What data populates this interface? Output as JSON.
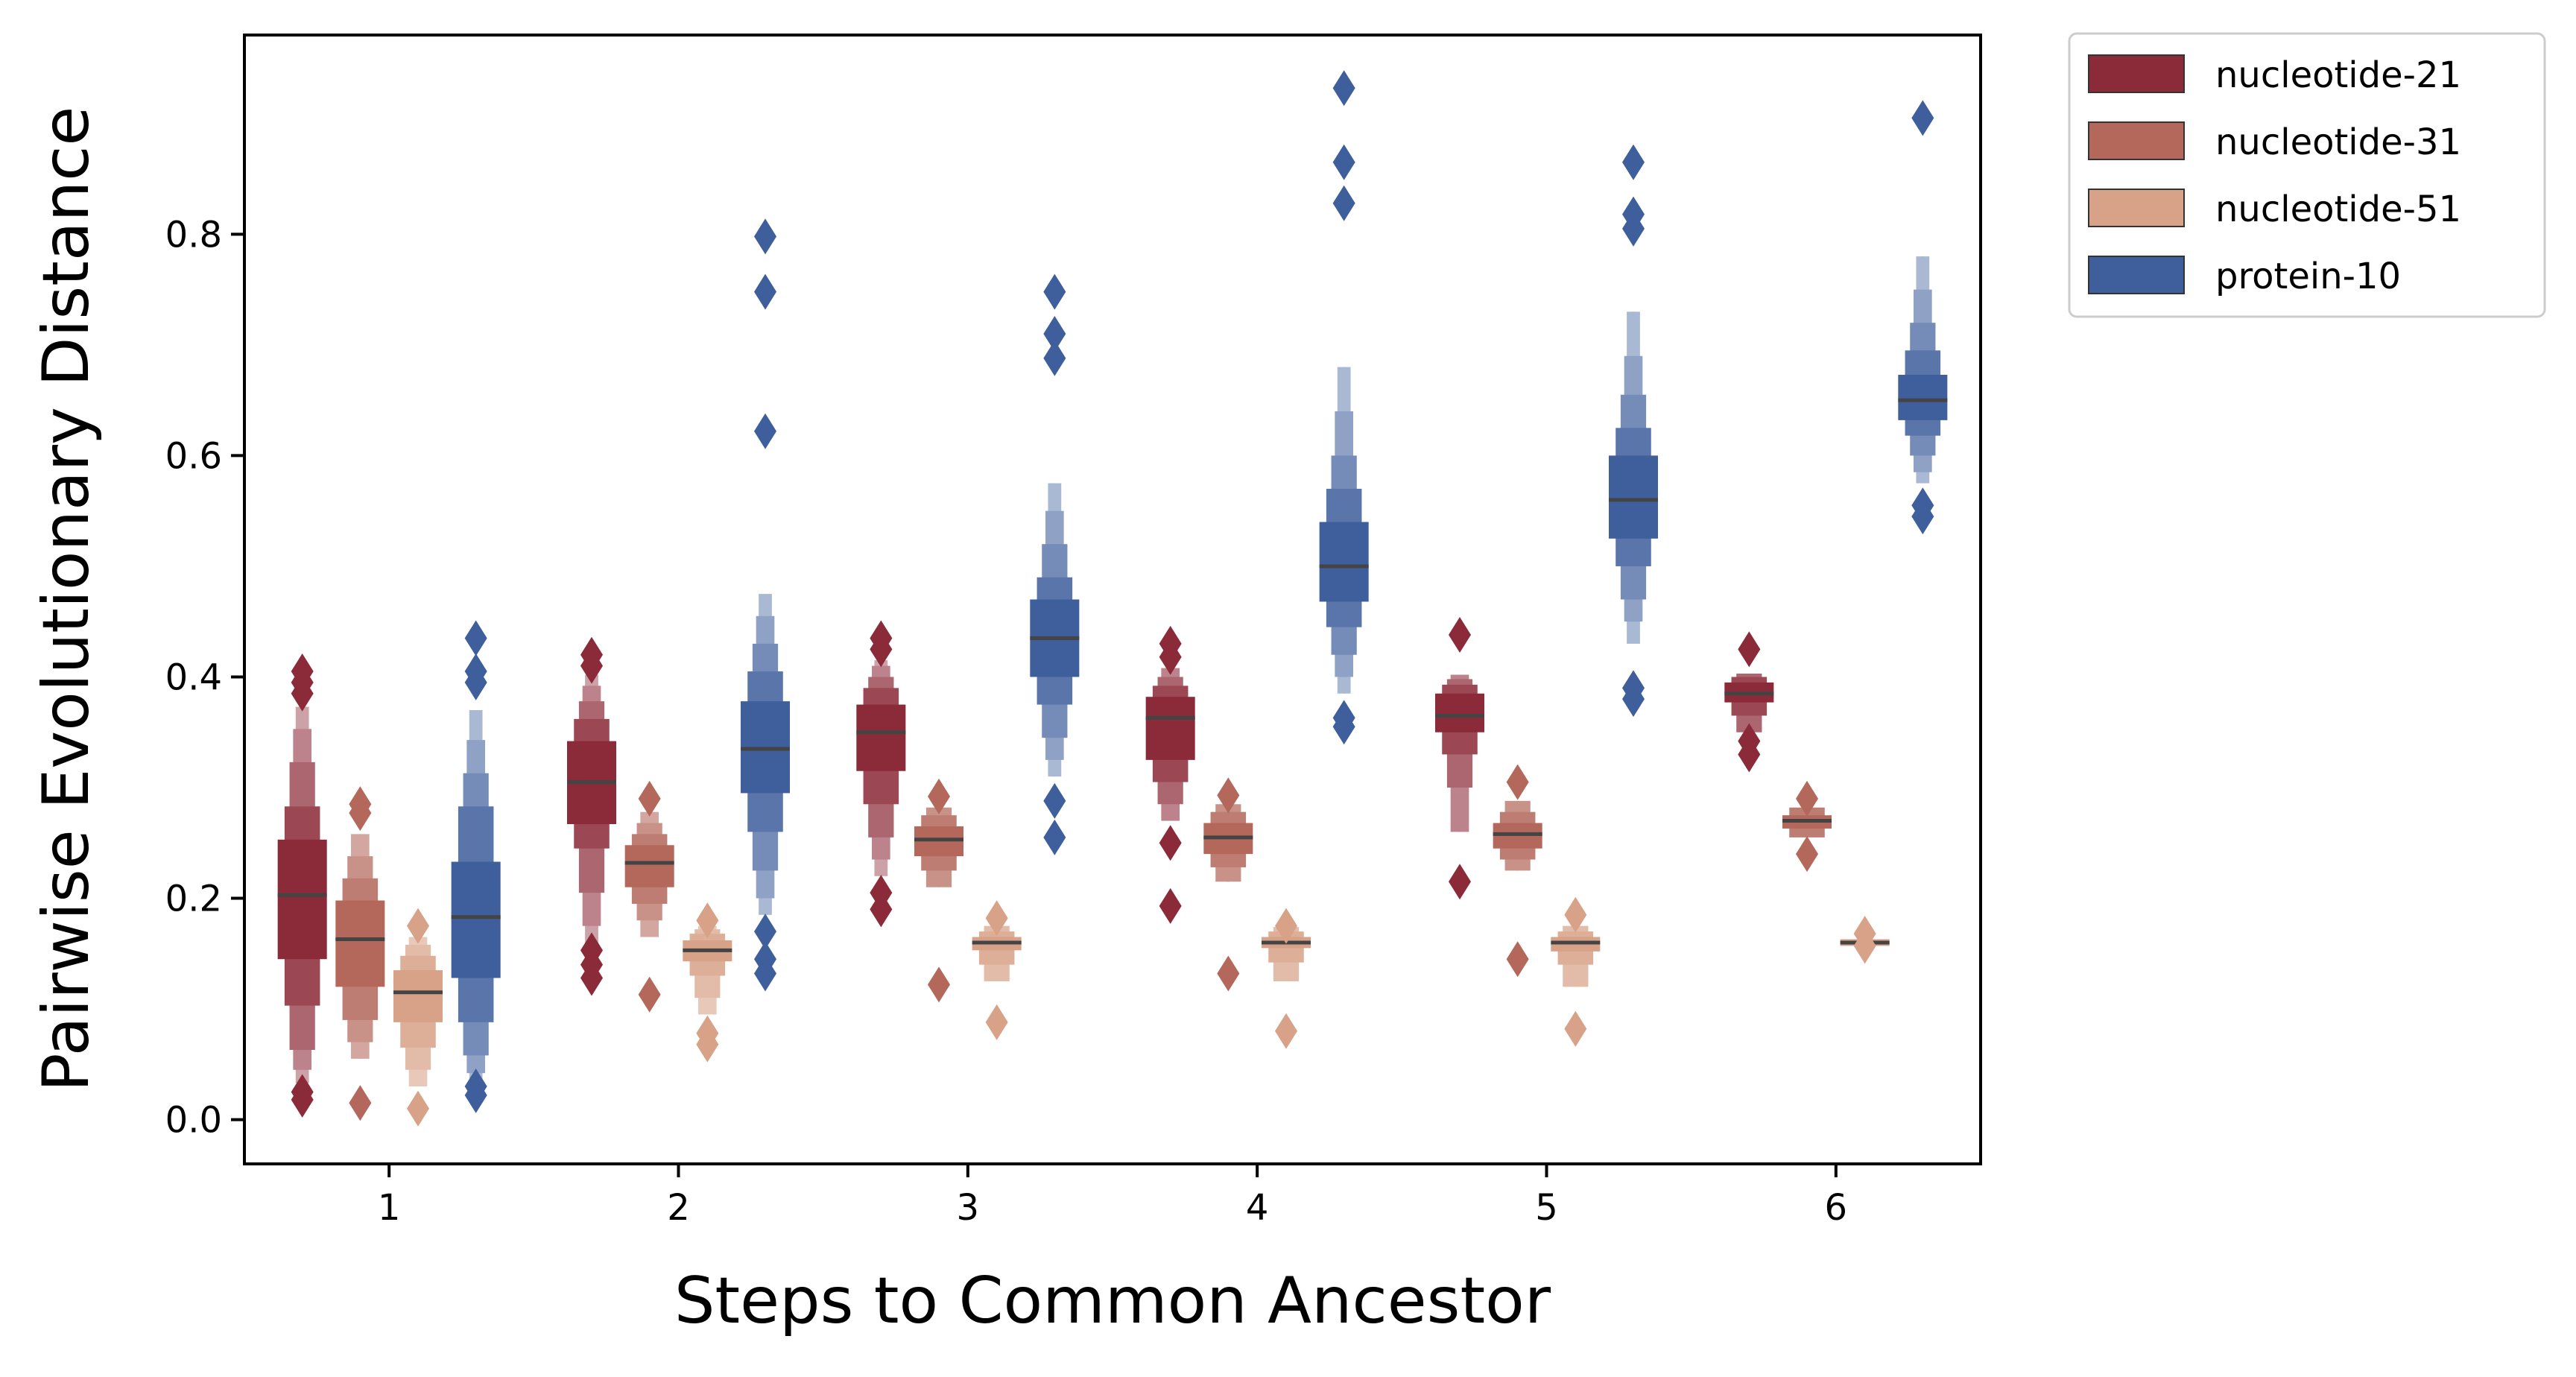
{
  "chart_data": {
    "type": "boxen",
    "xlabel": "Steps to Common Ancestor",
    "ylabel": "Pairwise Evolutionary Distance",
    "categories": [
      "1",
      "2",
      "3",
      "4",
      "5",
      "6"
    ],
    "ylim": [
      -0.04,
      0.98
    ],
    "yticks": [
      0.0,
      0.2,
      0.4,
      0.6,
      0.8
    ],
    "ytick_labels": [
      "0.0",
      "0.2",
      "0.4",
      "0.6",
      "0.8"
    ],
    "grid": false,
    "legend_position": "outside-top-right",
    "series": [
      {
        "name": "nucleotide-21",
        "color": "#8b2a38",
        "groups": [
          {
            "median": 0.203,
            "levels": [
              [
                0.145,
                0.253
              ],
              [
                0.103,
                0.283
              ],
              [
                0.063,
                0.323
              ],
              [
                0.045,
                0.353
              ],
              [
                0.033,
                0.373
              ]
            ],
            "outliers": [
              0.385,
              0.395,
              0.405,
              0.018,
              0.025
            ]
          },
          {
            "median": 0.305,
            "levels": [
              [
                0.267,
                0.342
              ],
              [
                0.245,
                0.362
              ],
              [
                0.205,
                0.378
              ],
              [
                0.175,
                0.392
              ],
              [
                0.155,
                0.402
              ]
            ],
            "outliers": [
              0.41,
              0.42,
              0.153,
              0.14,
              0.128
            ]
          },
          {
            "median": 0.35,
            "levels": [
              [
                0.315,
                0.375
              ],
              [
                0.285,
                0.39
              ],
              [
                0.255,
                0.4
              ],
              [
                0.235,
                0.41
              ],
              [
                0.22,
                0.415
              ]
            ],
            "outliers": [
              0.425,
              0.435,
              0.205,
              0.19
            ]
          },
          {
            "median": 0.363,
            "levels": [
              [
                0.325,
                0.382
              ],
              [
                0.305,
                0.392
              ],
              [
                0.285,
                0.4
              ],
              [
                0.27,
                0.408
              ]
            ],
            "outliers": [
              0.418,
              0.43,
              0.25,
              0.193
            ]
          },
          {
            "median": 0.365,
            "levels": [
              [
                0.35,
                0.385
              ],
              [
                0.33,
                0.393
              ],
              [
                0.3,
                0.398
              ],
              [
                0.26,
                0.402
              ]
            ],
            "outliers": [
              0.438,
              0.215
            ]
          },
          {
            "median": 0.385,
            "levels": [
              [
                0.377,
                0.395
              ],
              [
                0.365,
                0.4
              ],
              [
                0.35,
                0.403
              ]
            ],
            "outliers": [
              0.425,
              0.33,
              0.342
            ]
          }
        ]
      },
      {
        "name": "nucleotide-31",
        "color": "#b3685b",
        "groups": [
          {
            "median": 0.163,
            "levels": [
              [
                0.12,
                0.198
              ],
              [
                0.09,
                0.218
              ],
              [
                0.07,
                0.238
              ],
              [
                0.055,
                0.258
              ]
            ],
            "outliers": [
              0.277,
              0.285,
              0.015
            ]
          },
          {
            "median": 0.232,
            "levels": [
              [
                0.21,
                0.248
              ],
              [
                0.195,
                0.258
              ],
              [
                0.18,
                0.268
              ],
              [
                0.165,
                0.278
              ]
            ],
            "outliers": [
              0.29,
              0.113
            ]
          },
          {
            "median": 0.253,
            "levels": [
              [
                0.238,
                0.265
              ],
              [
                0.225,
                0.275
              ],
              [
                0.21,
                0.282
              ]
            ],
            "outliers": [
              0.292,
              0.122
            ]
          },
          {
            "median": 0.255,
            "levels": [
              [
                0.24,
                0.268
              ],
              [
                0.228,
                0.278
              ],
              [
                0.215,
                0.285
              ]
            ],
            "outliers": [
              0.293,
              0.132
            ]
          },
          {
            "median": 0.258,
            "levels": [
              [
                0.245,
                0.268
              ],
              [
                0.235,
                0.278
              ],
              [
                0.225,
                0.288
              ]
            ],
            "outliers": [
              0.305,
              0.145
            ]
          },
          {
            "median": 0.27,
            "levels": [
              [
                0.263,
                0.275
              ],
              [
                0.255,
                0.282
              ]
            ],
            "outliers": [
              0.29,
              0.24
            ]
          }
        ]
      },
      {
        "name": "nucleotide-51",
        "color": "#d7a287",
        "groups": [
          {
            "median": 0.115,
            "levels": [
              [
                0.088,
                0.135
              ],
              [
                0.065,
                0.148
              ],
              [
                0.045,
                0.158
              ],
              [
                0.03,
                0.165
              ]
            ],
            "outliers": [
              0.175,
              0.01
            ]
          },
          {
            "median": 0.153,
            "levels": [
              [
                0.143,
                0.162
              ],
              [
                0.13,
                0.168
              ],
              [
                0.11,
                0.172
              ],
              [
                0.095,
                0.175
              ]
            ],
            "outliers": [
              0.18,
              0.078,
              0.068
            ]
          },
          {
            "median": 0.16,
            "levels": [
              [
                0.153,
                0.165
              ],
              [
                0.14,
                0.17
              ],
              [
                0.125,
                0.175
              ]
            ],
            "outliers": [
              0.182,
              0.088
            ]
          },
          {
            "median": 0.16,
            "levels": [
              [
                0.155,
                0.165
              ],
              [
                0.142,
                0.17
              ],
              [
                0.125,
                0.174
              ]
            ],
            "outliers": [
              0.175,
              0.08
            ]
          },
          {
            "median": 0.16,
            "levels": [
              [
                0.152,
                0.165
              ],
              [
                0.14,
                0.17
              ],
              [
                0.12,
                0.175
              ]
            ],
            "outliers": [
              0.185,
              0.082
            ]
          },
          {
            "median": 0.16,
            "levels": [
              [
                0.157,
                0.163
              ]
            ],
            "outliers": [
              0.168,
              0.157
            ]
          }
        ]
      },
      {
        "name": "protein-10",
        "color": "#3e5f9b",
        "groups": [
          {
            "median": 0.183,
            "levels": [
              [
                0.128,
                0.233
              ],
              [
                0.088,
                0.283
              ],
              [
                0.058,
                0.313
              ],
              [
                0.042,
                0.343
              ],
              [
                0.035,
                0.37
              ]
            ],
            "outliers": [
              0.395,
              0.405,
              0.435,
              0.03,
              0.022
            ]
          },
          {
            "median": 0.335,
            "levels": [
              [
                0.295,
                0.378
              ],
              [
                0.26,
                0.405
              ],
              [
                0.225,
                0.43
              ],
              [
                0.2,
                0.455
              ],
              [
                0.185,
                0.475
              ]
            ],
            "outliers": [
              0.622,
              0.748,
              0.798,
              0.17,
              0.145,
              0.132
            ]
          },
          {
            "median": 0.435,
            "levels": [
              [
                0.4,
                0.47
              ],
              [
                0.375,
                0.49
              ],
              [
                0.345,
                0.52
              ],
              [
                0.325,
                0.55
              ],
              [
                0.31,
                0.575
              ]
            ],
            "outliers": [
              0.688,
              0.71,
              0.748,
              0.288,
              0.255
            ]
          },
          {
            "median": 0.5,
            "levels": [
              [
                0.468,
                0.54
              ],
              [
                0.445,
                0.57
              ],
              [
                0.42,
                0.6
              ],
              [
                0.4,
                0.64
              ],
              [
                0.385,
                0.68
              ]
            ],
            "outliers": [
              0.828,
              0.865,
              0.932,
              0.363,
              0.355
            ]
          },
          {
            "median": 0.56,
            "levels": [
              [
                0.525,
                0.6
              ],
              [
                0.5,
                0.625
              ],
              [
                0.47,
                0.655
              ],
              [
                0.45,
                0.69
              ],
              [
                0.43,
                0.73
              ]
            ],
            "outliers": [
              0.805,
              0.818,
              0.865,
              0.39,
              0.38
            ]
          },
          {
            "median": 0.65,
            "levels": [
              [
                0.632,
                0.673
              ],
              [
                0.618,
                0.695
              ],
              [
                0.6,
                0.72
              ],
              [
                0.585,
                0.75
              ],
              [
                0.575,
                0.78
              ]
            ],
            "outliers": [
              0.905,
              0.555,
              0.545
            ]
          }
        ]
      }
    ]
  }
}
